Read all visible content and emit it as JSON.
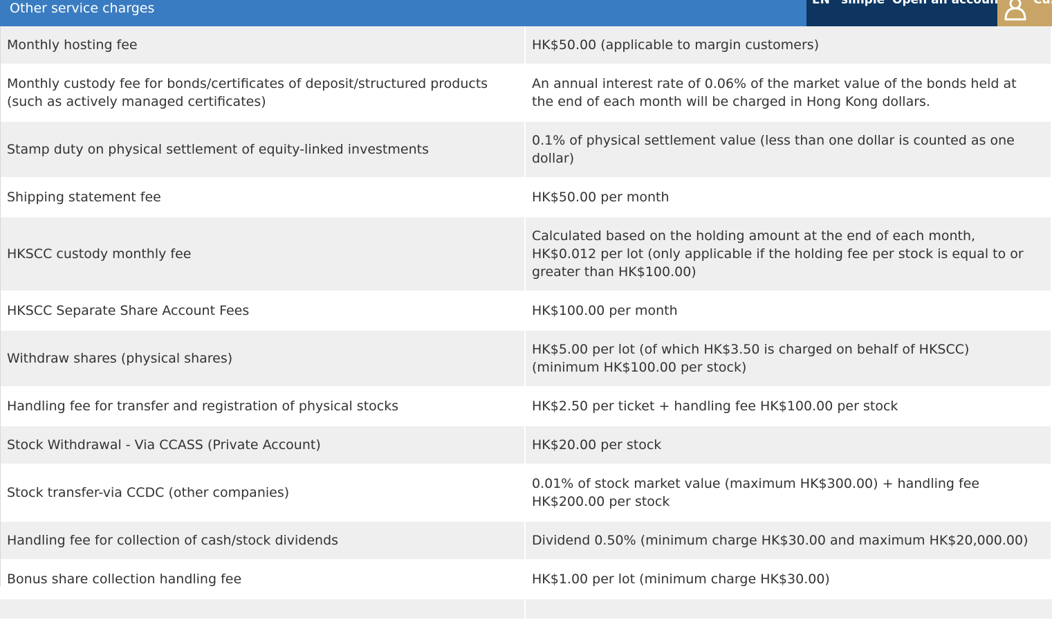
{
  "header": {
    "title": "Other service charges"
  },
  "topnav": {
    "language": "EN",
    "simple": "simple",
    "open_account": "Open an account",
    "customer_partial": "Cus"
  },
  "fees": {
    "rows": [
      {
        "item": "Monthly hosting fee",
        "charge": "HK$50.00 (applicable to margin customers)"
      },
      {
        "item": "Monthly custody fee for bonds/certificates of deposit/structured products (such as actively managed certificates)",
        "charge": "An annual interest rate of 0.06% of the market value of the bonds held at the end of each month will be charged in Hong Kong dollars."
      },
      {
        "item": "Stamp duty on physical settlement of equity-linked investments",
        "charge": "0.1% of physical settlement value (less than one dollar is counted as one dollar)"
      },
      {
        "item": "Shipping statement fee",
        "charge": "HK$50.00 per month"
      },
      {
        "item": "HKSCC custody monthly fee",
        "charge": "Calculated based on the holding amount at the end of each month, HK$0.012 per lot (only applicable if the holding fee per stock is equal to or greater than HK$100.00)"
      },
      {
        "item": "HKSCC Separate Share Account Fees",
        "charge": "HK$100.00 per month"
      },
      {
        "item": "Withdraw shares (physical shares)",
        "charge": "HK$5.00 per lot (of which HK$3.50 is charged on behalf of HKSCC) (minimum HK$100.00 per stock)"
      },
      {
        "item": "Handling fee for transfer and registration of physical stocks",
        "charge": "HK$2.50 per ticket + handling fee HK$100.00 per stock"
      },
      {
        "item": "Stock Withdrawal - Via CCASS (Private Account)",
        "charge": "HK$20.00 per stock"
      },
      {
        "item": "Stock transfer-via CCDC (other companies)",
        "charge": "0.01% of stock market value (maximum HK$300.00) + handling fee HK$200.00 per stock"
      },
      {
        "item": "Handling fee for collection of cash/stock dividends",
        "charge": "Dividend 0.50% (minimum charge HK$30.00 and maximum HK$20,000.00)"
      },
      {
        "item": "Bonus share collection handling fee",
        "charge": "HK$1.00 per lot (minimum charge HK$30.00)"
      },
      {
        "item": "",
        "charge": ""
      }
    ]
  },
  "colors": {
    "header_bg": "#3a7cc1",
    "nav_bg": "#0d3560",
    "customer_bg": "#c8a566",
    "row_alt_bg": "#efefef"
  },
  "icons": {
    "customer": "user-icon"
  }
}
